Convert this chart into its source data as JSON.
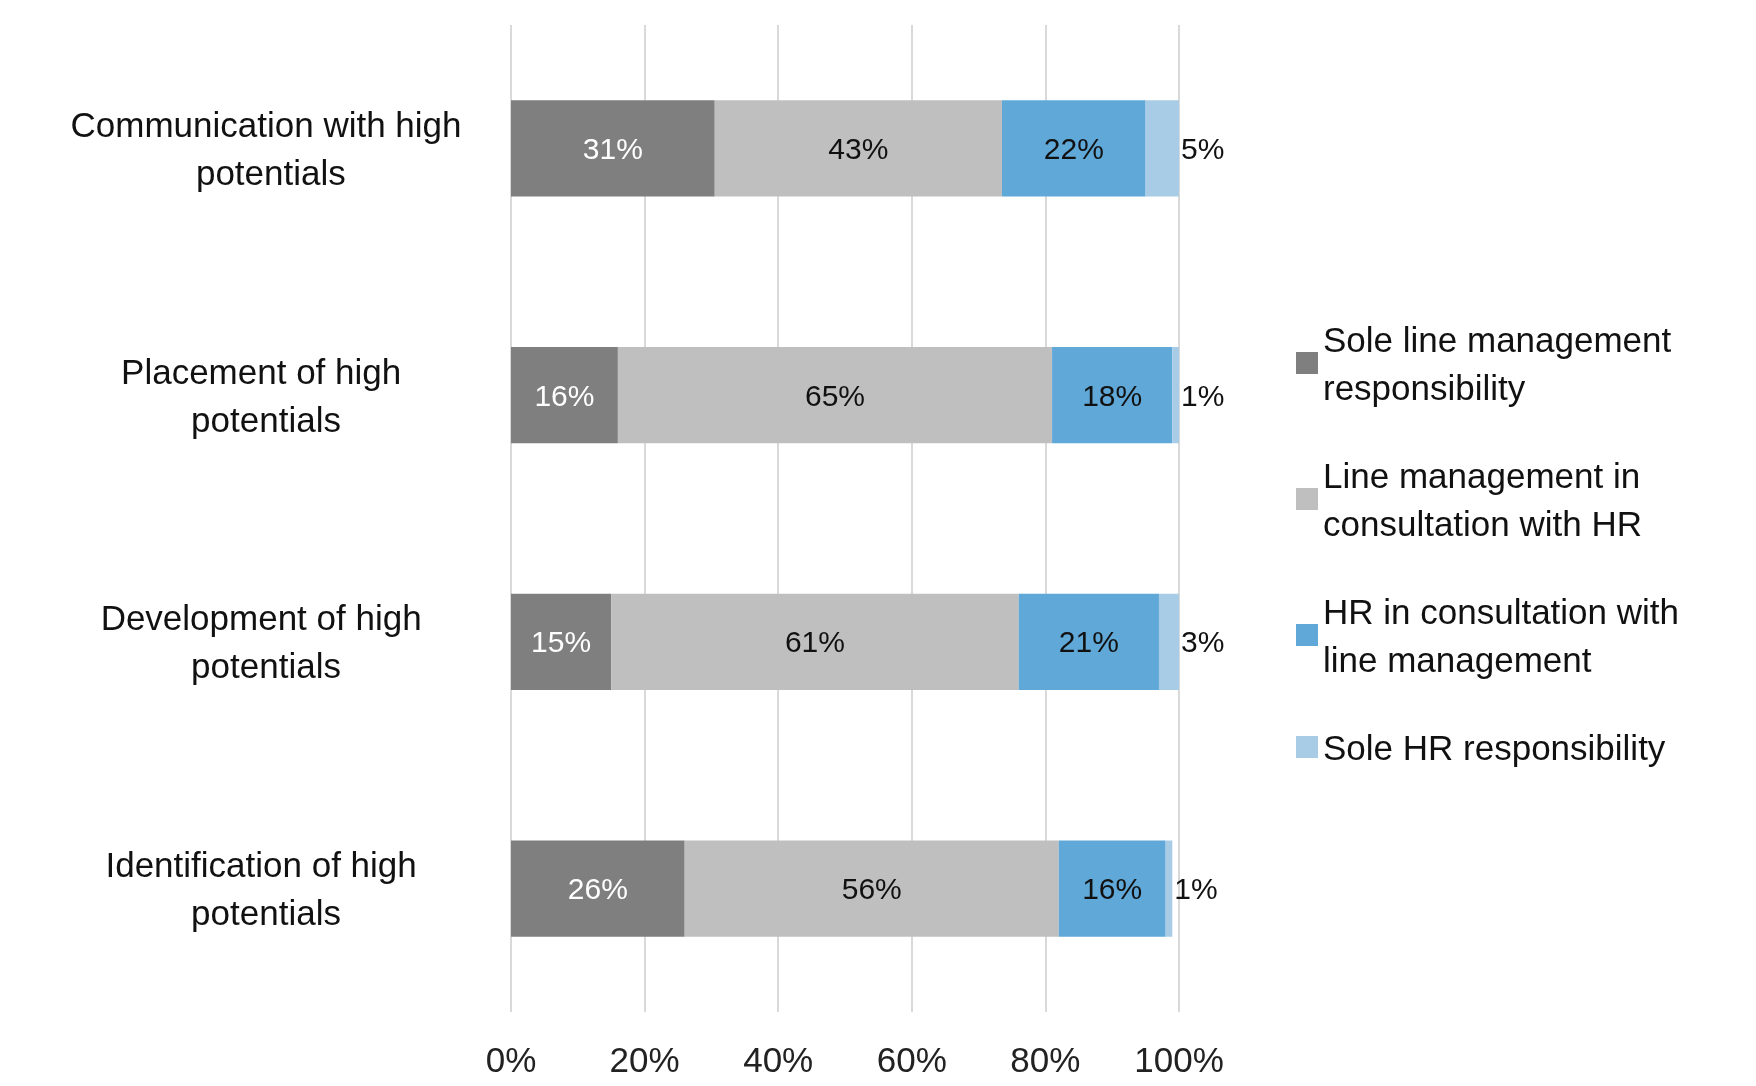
{
  "chart_data": {
    "type": "bar",
    "orientation": "horizontal",
    "stacked": true,
    "categories": [
      "Communication with high potentials",
      "Placement of high potentials",
      "Development of high potentials",
      "Identification of high potentials"
    ],
    "series": [
      {
        "name": "Sole line management responsibility",
        "color": "#7f7f7f",
        "values": [
          30.5,
          16,
          15,
          26
        ],
        "value_labels": [
          "31%",
          "16%",
          "15%",
          "26%"
        ]
      },
      {
        "name": "Line management in consultation with HR",
        "color": "#bfbfbf",
        "values": [
          43,
          65,
          61,
          56
        ],
        "value_labels": [
          "43%",
          "65%",
          "61%",
          "56%"
        ]
      },
      {
        "name": "HR in consultation with line management",
        "color": "#5fa8d8",
        "values": [
          21.5,
          18,
          21,
          16
        ],
        "value_labels": [
          "22%",
          "18%",
          "21%",
          "16%"
        ]
      },
      {
        "name": "Sole HR responsibility",
        "color": "#a9cce6",
        "values": [
          5,
          1,
          3,
          1
        ],
        "value_labels": [
          "5%",
          "1%",
          "3%",
          "1%"
        ]
      }
    ],
    "xlim": [
      0,
      100
    ],
    "xticks": [
      {
        "value": 0,
        "label": "0%"
      },
      {
        "value": 20,
        "label": "20%"
      },
      {
        "value": 40,
        "label": "40%"
      },
      {
        "value": 60,
        "label": "60%"
      },
      {
        "value": 80,
        "label": "80%"
      },
      {
        "value": 100,
        "label": "100%"
      }
    ],
    "grid": "x",
    "legend": "right"
  }
}
